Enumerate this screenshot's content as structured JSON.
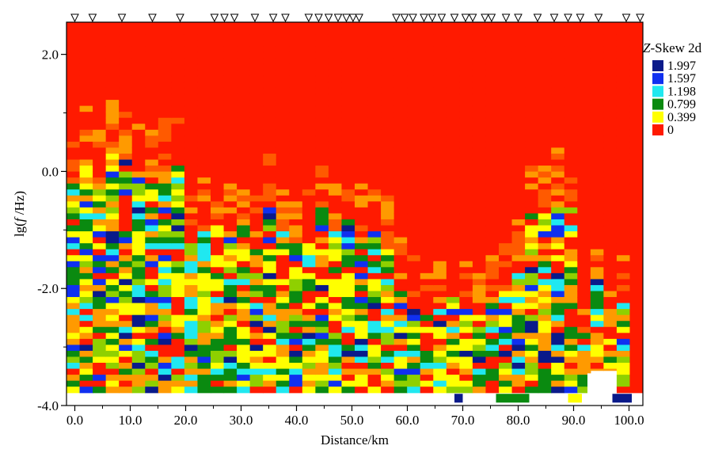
{
  "chart_data": {
    "type": "heatmap",
    "xlabel": "Distance/km",
    "ylabel_prefix": "lg(",
    "ylabel_italic": "f",
    "ylabel_suffix": " /Hz)",
    "xlim": [
      -1.5,
      102.5
    ],
    "ylim": [
      -4.0,
      2.55
    ],
    "x_ticks": [
      0,
      10,
      20,
      30,
      40,
      50,
      60,
      70,
      80,
      90,
      100
    ],
    "x_tick_labels": [
      "0.0",
      "10.0",
      "20.0",
      "30.0",
      "40.0",
      "50.0",
      "60.0",
      "70.0",
      "80.0",
      "90.0",
      "100.0"
    ],
    "y_ticks": [
      2,
      0,
      -2,
      -4
    ],
    "y_tick_labels": [
      "2.0",
      "0.0",
      "-2.0",
      "-4.0"
    ],
    "stations_km": [
      0.0,
      3.2,
      8.5,
      14.0,
      19.0,
      25.2,
      27.0,
      28.8,
      32.5,
      35.8,
      38.0,
      42.2,
      44.0,
      45.8,
      47.5,
      49.0,
      50.2,
      51.3,
      58.0,
      59.5,
      61.0,
      63.0,
      64.5,
      66.2,
      68.5,
      70.5,
      71.8,
      74.0,
      75.2,
      77.8,
      80.0,
      83.5,
      86.5,
      89.0,
      91.2,
      94.5,
      99.5,
      102.0
    ],
    "color_scale": {
      "title_italic": "Z",
      "title_rest": "-Skew 2d",
      "levels": [
        "1.997",
        "1.597",
        "1.198",
        "0.799",
        "0.399",
        "0"
      ],
      "colors": [
        "#0a1a8a",
        "#1030f0",
        "#20e8f0",
        "#0a8a10",
        "#ffff00",
        "#ff1a00"
      ]
    },
    "value_range": [
      0,
      2
    ]
  }
}
